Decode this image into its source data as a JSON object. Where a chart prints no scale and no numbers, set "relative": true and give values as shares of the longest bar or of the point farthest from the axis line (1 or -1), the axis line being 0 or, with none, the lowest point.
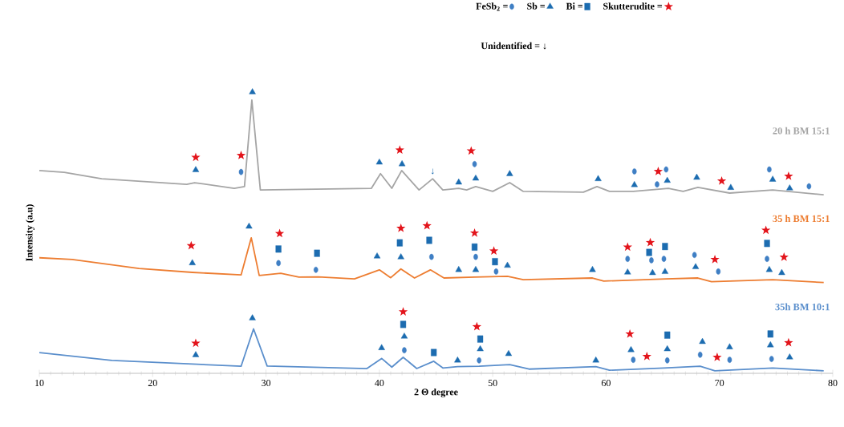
{
  "chart_data": {
    "type": "line",
    "relative": true,
    "xlabel": "2 Θ degree",
    "ylabel": "Intensity (a.u)",
    "xlim": [
      10,
      80
    ],
    "xticks": [
      10,
      20,
      30,
      40,
      50,
      60,
      70,
      80
    ],
    "legend": "top right",
    "annotations": [
      "Unidentified = ↓",
      {
        "text": "↓",
        "x": 44.7,
        "y": 0.692
      }
    ],
    "series": [
      {
        "name": "20 h BM 15:1",
        "color": "#a5a5a5",
        "x": [
          10,
          12.2,
          15.5,
          23,
          23.7,
          27.2,
          28.1,
          28.75,
          29.5,
          39.3,
          40.1,
          41.1,
          41.97,
          43.5,
          44.7,
          45.6,
          47.0,
          47.7,
          48.5,
          50.0,
          51.5,
          52.7,
          58.0,
          59.2,
          60.3,
          62.4,
          65.5,
          66.8,
          68.1,
          70.9,
          74.7,
          79.2
        ],
        "values": [
          0.721,
          0.715,
          0.692,
          0.672,
          0.678,
          0.658,
          0.664,
          0.972,
          0.652,
          0.658,
          0.71,
          0.658,
          0.721,
          0.652,
          0.692,
          0.652,
          0.658,
          0.652,
          0.664,
          0.647,
          0.678,
          0.647,
          0.644,
          0.664,
          0.647,
          0.647,
          0.658,
          0.647,
          0.661,
          0.641,
          0.652,
          0.635
        ]
      },
      {
        "name": "35 h BM 15:1",
        "color": "#ed7d31",
        "x": [
          10,
          12.9,
          18.8,
          23.5,
          27.8,
          28.7,
          29.4,
          31.3,
          32.9,
          34.6,
          37.8,
          40.0,
          41.0,
          41.9,
          43.1,
          44.5,
          45.7,
          48.4,
          51.3,
          52.7,
          58.8,
          59.8,
          65.3,
          68.1,
          69.3,
          74.7,
          79.2
        ],
        "values": [
          0.411,
          0.405,
          0.373,
          0.359,
          0.35,
          0.482,
          0.348,
          0.356,
          0.342,
          0.343,
          0.336,
          0.368,
          0.34,
          0.371,
          0.339,
          0.368,
          0.339,
          0.342,
          0.345,
          0.333,
          0.339,
          0.328,
          0.336,
          0.339,
          0.326,
          0.333,
          0.323
        ]
      },
      {
        "name": "35h BM 10:1",
        "color": "#5b8fcc",
        "x": [
          10,
          16.4,
          23.5,
          27.8,
          28.9,
          30.1,
          38.9,
          40.2,
          41.1,
          42.1,
          43.3,
          44.8,
          45.6,
          46.9,
          48.8,
          51.5,
          53.2,
          59.1,
          60.3,
          65.1,
          68.3,
          69.6,
          74.7,
          79.2
        ],
        "values": [
          0.074,
          0.046,
          0.033,
          0.025,
          0.158,
          0.026,
          0.017,
          0.053,
          0.022,
          0.057,
          0.017,
          0.043,
          0.019,
          0.024,
          0.025,
          0.031,
          0.015,
          0.024,
          0.011,
          0.019,
          0.025,
          0.009,
          0.019,
          0.009
        ]
      },
      {
        "name": "FeSb$_{2}$ =",
        "type": "scatter",
        "marker": "circle",
        "color": "#3f7fc4",
        "x": [
          27.8,
          48.4,
          62.5,
          64.5,
          65.3,
          74.4,
          77.9,
          31.1,
          34.4,
          44.6,
          48.5,
          50.3,
          61.9,
          64.0,
          65.1,
          67.8,
          69.9,
          74.2,
          42.2,
          48.8,
          62.4,
          65.4,
          68.3,
          70.9,
          74.6
        ],
        "values": [
          0.716,
          0.744,
          0.718,
          0.672,
          0.725,
          0.725,
          0.665,
          0.392,
          0.368,
          0.414,
          0.414,
          0.362,
          0.407,
          0.402,
          0.407,
          0.421,
          0.362,
          0.407,
          0.082,
          0.046,
          0.048,
          0.046,
          0.066,
          0.048,
          0.051
        ]
      },
      {
        "name": "Sb =",
        "type": "scatter",
        "marker": "triangle",
        "color": "#1c6cb0",
        "x": [
          23.8,
          28.8,
          40.0,
          42.0,
          47.0,
          48.5,
          51.5,
          59.3,
          62.5,
          65.4,
          68.0,
          71.0,
          74.7,
          76.2,
          23.5,
          28.5,
          39.8,
          41.9,
          47.0,
          48.5,
          51.3,
          58.8,
          61.9,
          64.1,
          65.2,
          67.9,
          74.4,
          75.5,
          23.8,
          28.8,
          40.2,
          42.2,
          46.9,
          48.9,
          51.4,
          59.1,
          62.2,
          65.4,
          68.5,
          70.9,
          74.5,
          76.2
        ],
        "values": [
          0.723,
          1,
          0.75,
          0.744,
          0.679,
          0.693,
          0.709,
          0.691,
          0.67,
          0.685,
          0.696,
          0.66,
          0.689,
          0.658,
          0.392,
          0.522,
          0.416,
          0.413,
          0.368,
          0.368,
          0.383,
          0.368,
          0.359,
          0.357,
          0.361,
          0.378,
          0.368,
          0.357,
          0.065,
          0.196,
          0.09,
          0.131,
          0.046,
          0.086,
          0.069,
          0.046,
          0.083,
          0.086,
          0.112,
          0.093,
          0.1,
          0.057
        ]
      },
      {
        "name": "Bi =",
        "type": "scatter",
        "marker": "square",
        "color": "#1c6cb0",
        "x": [
          31.1,
          34.5,
          41.8,
          44.4,
          48.4,
          50.2,
          63.8,
          65.2,
          74.2,
          42.1,
          44.8,
          48.9,
          65.4,
          74.5
        ],
        "values": [
          0.442,
          0.427,
          0.464,
          0.473,
          0.449,
          0.397,
          0.43,
          0.451,
          0.462,
          0.174,
          0.074,
          0.122,
          0.136,
          0.14
        ]
      },
      {
        "name": "Skutterudite =",
        "type": "scatter",
        "marker": "star",
        "color": "#e3141b",
        "x": [
          23.8,
          27.8,
          41.8,
          48.1,
          64.6,
          70.2,
          76.1,
          23.4,
          31.2,
          41.9,
          44.2,
          48.4,
          50.1,
          61.9,
          63.9,
          69.6,
          74.1,
          75.7,
          23.8,
          42.1,
          48.6,
          62.1,
          63.6,
          69.8,
          76.1
        ],
        "values": [
          0.768,
          0.775,
          0.794,
          0.791,
          0.718,
          0.684,
          0.701,
          0.454,
          0.497,
          0.516,
          0.525,
          0.499,
          0.435,
          0.449,
          0.465,
          0.405,
          0.509,
          0.413,
          0.107,
          0.219,
          0.166,
          0.14,
          0.06,
          0.057,
          0.109
        ]
      }
    ]
  }
}
